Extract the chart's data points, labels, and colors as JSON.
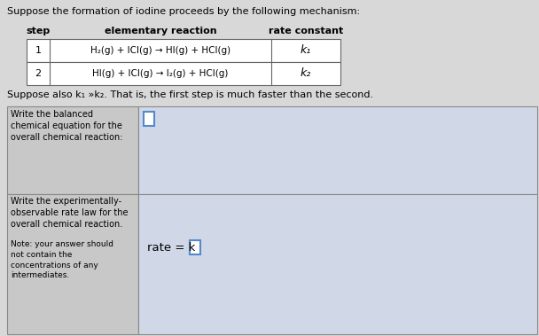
{
  "bg_color": "#d8d8d8",
  "title_text": "Suppose the formation of iodine proceeds by the following mechanism:",
  "col_headers": [
    "step",
    "elementary reaction",
    "rate constant"
  ],
  "row1_num": "1",
  "row1_eq": "H₂(g) + ICl(g) → HI(g) + HCl(g)",
  "row1_k": "k₁",
  "row2_num": "2",
  "row2_eq": "HI(g) + ICl(g) → I₂(g) + HCl(g)",
  "row2_k": "k₂",
  "suppose_text": "Suppose also k₁ »k₂. That is, the first step is much faster than the second.",
  "box1_left": "Write the balanced\nchemical equation for the\noverall chemical reaction:",
  "box2_left_part1": "Write the experimentally-\nobservable rate law for the\noverall chemical reaction.",
  "box2_left_part2": "Note: your answer should\nnot contain the\nconcentrations of any\nintermediates.",
  "rate_text": "rate = k",
  "table_bg": "#ffffff",
  "table_border": "#666666",
  "panel_bg": "#c8c8c8",
  "panel_border": "#888888",
  "answer_bg": "#d0d8e8",
  "input_box_border": "#5588cc"
}
